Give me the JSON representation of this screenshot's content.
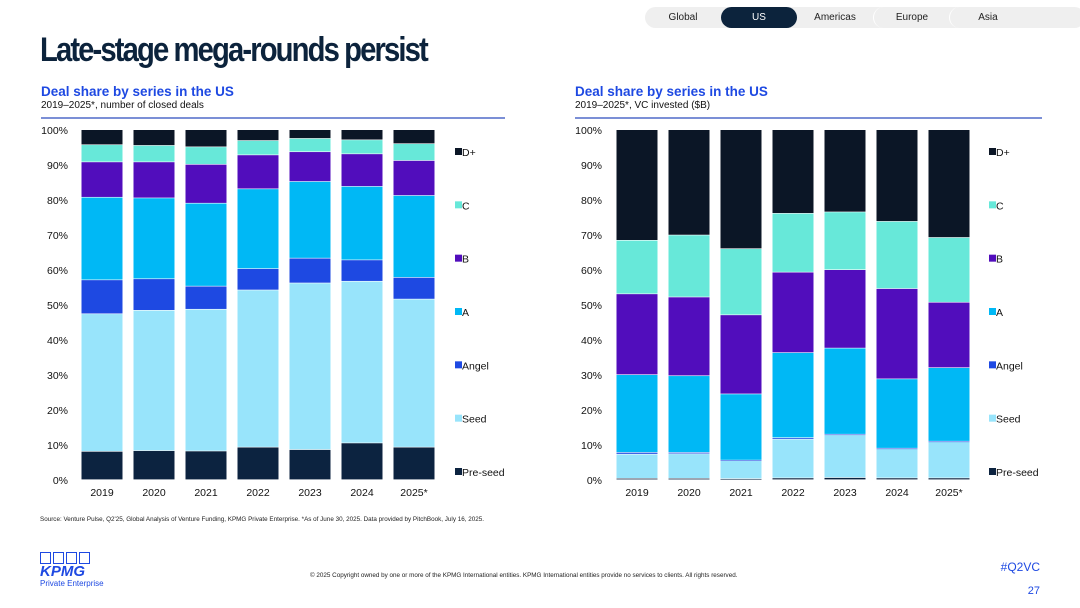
{
  "tabs": [
    {
      "label": "Global",
      "active": false
    },
    {
      "label": "US",
      "active": true
    },
    {
      "label": "Americas",
      "active": false
    },
    {
      "label": "Europe",
      "active": false
    },
    {
      "label": "Asia",
      "active": false
    }
  ],
  "title": "Late-stage mega-rounds persist",
  "colors": {
    "Pre-seed": "#0c2340",
    "Seed": "#98e4fb",
    "Angel": "#1e49e2",
    "A": "#00b8f5",
    "B": "#510dbc",
    "C": "#67e8d9",
    "D+": "#0b1626"
  },
  "chart_data": [
    {
      "type": "bar",
      "stacked": true,
      "title": "Deal share by series in the US",
      "subtitle": "2019–2025*, number of closed deals",
      "xlabel": "",
      "ylabel": "",
      "ylim": [
        0,
        100
      ],
      "yticks": [
        "0%",
        "10%",
        "20%",
        "30%",
        "40%",
        "50%",
        "60%",
        "70%",
        "80%",
        "90%",
        "100%"
      ],
      "legend_position": "right",
      "categories": [
        "2019",
        "2020",
        "2021",
        "2022",
        "2023",
        "2024",
        "2025*"
      ],
      "series": [
        {
          "name": "Pre-seed",
          "values": [
            8.1,
            8.3,
            8.2,
            9.3,
            8.6,
            10.5,
            9.3
          ]
        },
        {
          "name": "Seed",
          "values": [
            39.3,
            40.1,
            40.5,
            44.9,
            47.6,
            46.2,
            42.3
          ]
        },
        {
          "name": "Angel",
          "values": [
            9.7,
            9.0,
            6.6,
            6.1,
            7.1,
            6.1,
            6.2
          ]
        },
        {
          "name": "A",
          "values": [
            23.6,
            23.1,
            23.7,
            22.8,
            21.9,
            21.0,
            23.4
          ]
        },
        {
          "name": "B",
          "values": [
            10.1,
            10.3,
            11.1,
            9.7,
            8.5,
            9.3,
            10.0
          ]
        },
        {
          "name": "C",
          "values": [
            4.9,
            4.7,
            5.0,
            4.1,
            3.8,
            4.0,
            4.8
          ]
        },
        {
          "name": "D+",
          "values": [
            4.3,
            4.5,
            4.9,
            3.1,
            2.5,
            2.9,
            4.0
          ]
        }
      ]
    },
    {
      "type": "bar",
      "stacked": true,
      "title": "Deal share by series in the US",
      "subtitle": "2019–2025*, VC invested ($B)",
      "xlabel": "",
      "ylabel": "",
      "ylim": [
        0,
        100
      ],
      "yticks": [
        "0%",
        "10%",
        "20%",
        "30%",
        "40%",
        "50%",
        "60%",
        "70%",
        "80%",
        "90%",
        "100%"
      ],
      "legend_position": "right",
      "categories": [
        "2019",
        "2020",
        "2021",
        "2022",
        "2023",
        "2024",
        "2025*"
      ],
      "series": [
        {
          "name": "Pre-seed",
          "values": [
            0.4,
            0.4,
            0.3,
            0.5,
            0.6,
            0.5,
            0.5
          ]
        },
        {
          "name": "Seed",
          "values": [
            6.9,
            7.0,
            5.2,
            11.1,
            12.2,
            8.4,
            10.4
          ]
        },
        {
          "name": "Angel",
          "values": [
            0.5,
            0.4,
            0.1,
            0.4,
            0.2,
            0.1,
            0.1
          ]
        },
        {
          "name": "A",
          "values": [
            22.2,
            21.9,
            18.9,
            24.3,
            24.6,
            19.8,
            21.0
          ]
        },
        {
          "name": "B",
          "values": [
            23.1,
            22.5,
            22.6,
            23.0,
            22.4,
            25.8,
            18.7
          ]
        },
        {
          "name": "C",
          "values": [
            15.3,
            17.7,
            18.9,
            16.8,
            16.5,
            19.2,
            18.5
          ]
        },
        {
          "name": "D+",
          "values": [
            31.6,
            30.1,
            34.0,
            23.9,
            23.5,
            26.2,
            30.8
          ]
        }
      ]
    }
  ],
  "footer": {
    "source": "Source: Venture Pulse, Q2'25, Global Analysis of Venture Funding, KPMG Private Enterprise. *As of June 30, 2025. Data provided by PitchBook, July 16, 2025.",
    "copyright": "© 2025 Copyright owned by one or more of the KPMG International entities. KPMG International entities provide no services to clients. All rights reserved.",
    "hashtag": "#Q2VC",
    "page_number": "27",
    "logo_text": "KPMG",
    "logo_sub": "Private Enterprise"
  }
}
